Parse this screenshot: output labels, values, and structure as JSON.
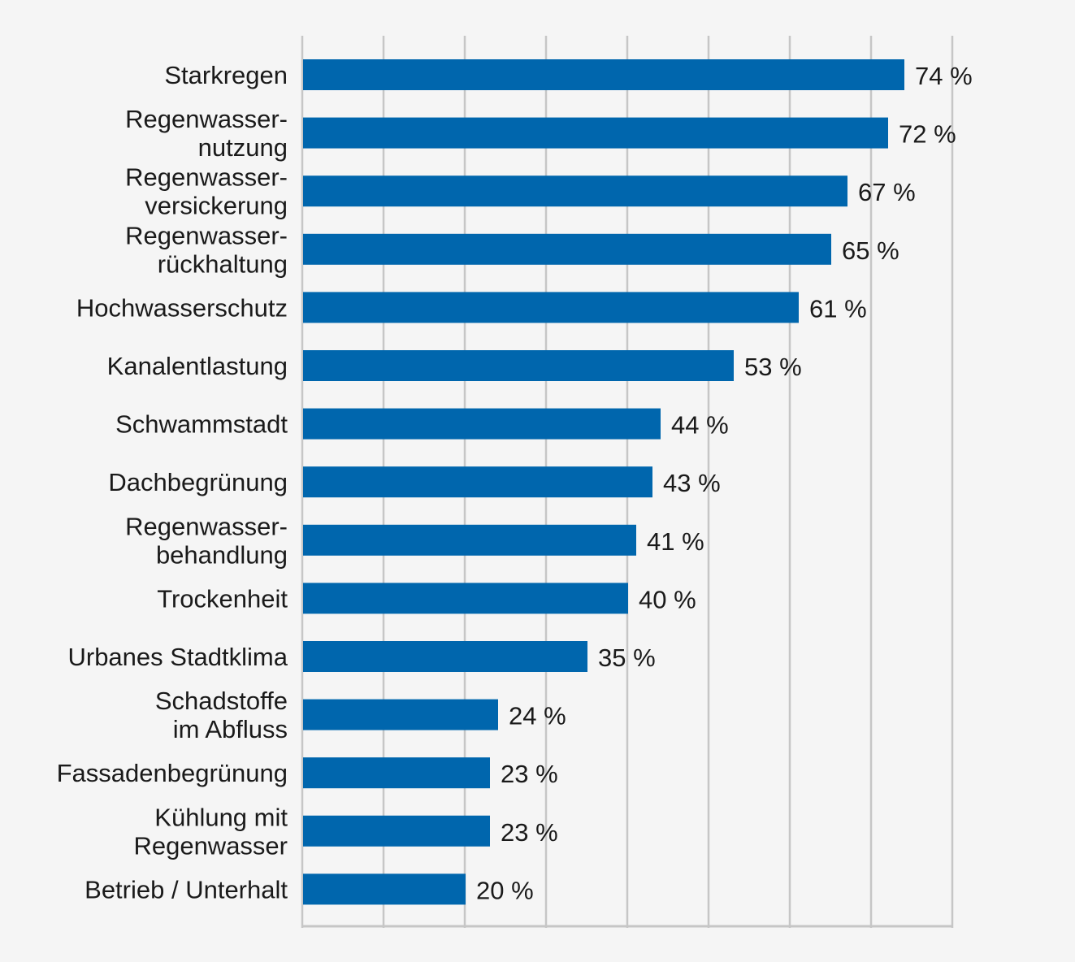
{
  "chart_data": {
    "type": "bar",
    "orientation": "horizontal",
    "title": "",
    "xlabel": "",
    "ylabel": "",
    "xlim": [
      0,
      80
    ],
    "grid": true,
    "value_suffix": " %",
    "bar_color": "#0066ad",
    "grid_color": "#c6c6c6",
    "categories": [
      [
        "Starkregen"
      ],
      [
        "Regenwasser-",
        "nutzung"
      ],
      [
        "Regenwasser-",
        "versickerung"
      ],
      [
        "Regenwasser-",
        "rückhaltung"
      ],
      [
        "Hochwasserschutz"
      ],
      [
        "Kanalentlastung"
      ],
      [
        "Schwammstadt"
      ],
      [
        "Dachbegrünung"
      ],
      [
        "Regenwasser-",
        "behandlung"
      ],
      [
        "Trockenheit"
      ],
      [
        "Urbanes Stadtklima"
      ],
      [
        "Schadstoffe",
        "im Abfluss"
      ],
      [
        "Fassadenbegrünung"
      ],
      [
        "Kühlung mit",
        "Regenwasser"
      ],
      [
        "Betrieb / Unterhalt"
      ]
    ],
    "values": [
      74,
      72,
      67,
      65,
      61,
      53,
      44,
      43,
      41,
      40,
      35,
      24,
      23,
      23,
      20
    ],
    "value_labels": [
      "74 %",
      "72 %",
      "67 %",
      "65 %",
      "61 %",
      "53 %",
      "44 %",
      "43 %",
      "41 %",
      "40 %",
      "35 %",
      "24 %",
      "23 %",
      "23 %",
      "20 %"
    ]
  }
}
